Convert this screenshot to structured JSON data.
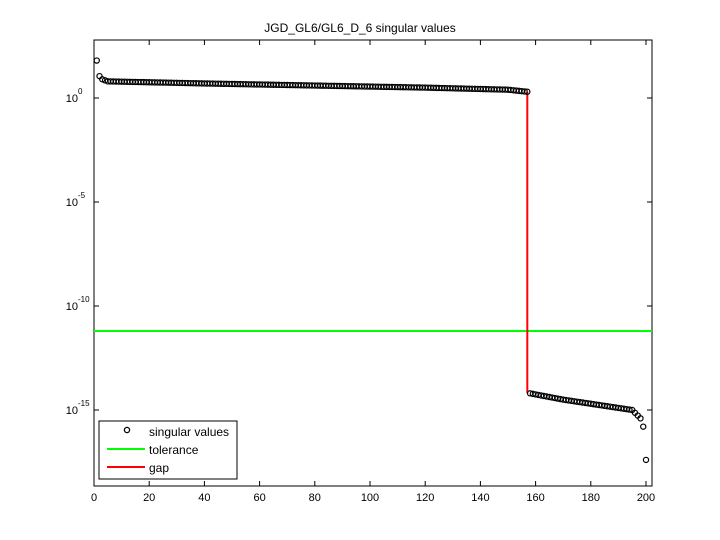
{
  "chart_data": {
    "type": "scatter",
    "title": "JGD_GL6/GL6_D_6 singular values",
    "xlabel": "",
    "ylabel": "",
    "yscale": "log",
    "xlim": [
      0,
      201
    ],
    "ylim_exponent": [
      -18.5,
      2.8
    ],
    "x_ticks": [
      "0",
      "20",
      "40",
      "60",
      "80",
      "100",
      "120",
      "140",
      "160",
      "180",
      "200"
    ],
    "y_ticks": [
      {
        "base": "10",
        "exp": "0",
        "value": 0
      },
      {
        "base": "10",
        "exp": "-5",
        "value": -5
      },
      {
        "base": "10",
        "exp": "-10",
        "value": -10
      },
      {
        "base": "10",
        "exp": "-15",
        "value": -15
      }
    ],
    "legend": [
      {
        "label": "singular values",
        "style": "marker-circle",
        "color": "#000000"
      },
      {
        "label": "tolerance",
        "style": "line",
        "color": "#00ff00"
      },
      {
        "label": "gap",
        "style": "line",
        "color": "#ff0000"
      }
    ],
    "legend_position": "lower-left",
    "grid": false,
    "series": [
      {
        "name": "singular values",
        "n": 200,
        "description": "log10 values: 1st ~1.8, 2nd ~1.0, then slowly decreasing from ~0.8 to ~0.4 up to index 157, then drop to ~-14.3, slowly decreasing to ~-15.0 near index 196, ~-15.8 at 199, ~-17.4 at 200",
        "log10_segments": [
          {
            "x": 1,
            "y": 1.8
          },
          {
            "x": 2,
            "y": 1.05
          },
          {
            "x": 3,
            "y": 0.9
          },
          {
            "x": 5,
            "y": 0.8
          },
          {
            "x": 40,
            "y": 0.7
          },
          {
            "x": 80,
            "y": 0.6
          },
          {
            "x": 120,
            "y": 0.5
          },
          {
            "x": 150,
            "y": 0.4
          },
          {
            "x": 157,
            "y": 0.3
          },
          {
            "x": 158,
            "y": -14.2
          },
          {
            "x": 170,
            "y": -14.5
          },
          {
            "x": 185,
            "y": -14.8
          },
          {
            "x": 195,
            "y": -15.0
          },
          {
            "x": 198,
            "y": -15.4
          },
          {
            "x": 199,
            "y": -15.8
          },
          {
            "x": 200,
            "y": -17.4
          }
        ]
      },
      {
        "name": "tolerance",
        "log10_value": -11.2,
        "color": "#00ff00"
      },
      {
        "name": "gap",
        "x": 157,
        "log10_from": 0.3,
        "log10_to": -14.2,
        "color": "#ff0000"
      }
    ]
  }
}
